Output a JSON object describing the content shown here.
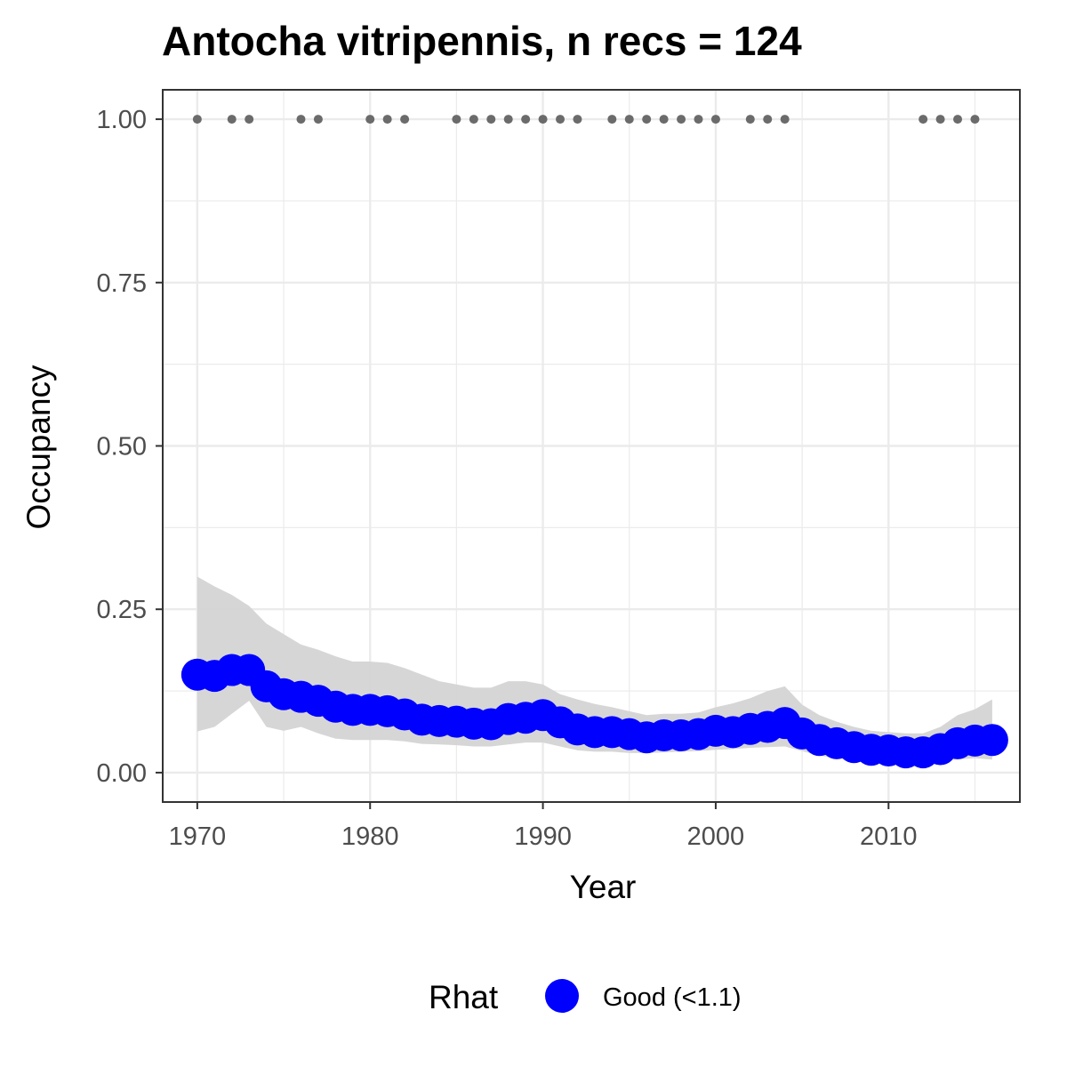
{
  "chart_data": {
    "type": "line",
    "title": "Antocha vitripennis, n recs = 124",
    "xlabel": "Year",
    "ylabel": "Occupancy",
    "xlim": [
      1968,
      2017.6
    ],
    "ylim": [
      -0.045,
      1.045
    ],
    "x_ticks": [
      1970,
      1980,
      1990,
      2000,
      2010
    ],
    "x_tick_labels": [
      "1970",
      "1980",
      "1990",
      "2000",
      "2010"
    ],
    "y_ticks": [
      0,
      0.25,
      0.5,
      0.75,
      1
    ],
    "y_tick_labels": [
      "0.00",
      "0.25",
      "0.50",
      "0.75",
      "1.00"
    ],
    "grid": true,
    "legend": {
      "title": "Rhat",
      "position": "bottom",
      "entries": [
        {
          "label": "Good (<1.1)",
          "color": "#0000ff"
        }
      ]
    },
    "colors": {
      "line": "#0000ff",
      "ribbon": "#d4d4d4",
      "record_points": "#6b6b6b",
      "grid": "#ebebeb",
      "panel_border": "#333333"
    },
    "series": [
      {
        "name": "Good (<1.1)",
        "x": [
          1970,
          1971,
          1972,
          1973,
          1974,
          1975,
          1976,
          1977,
          1978,
          1979,
          1980,
          1981,
          1982,
          1983,
          1984,
          1985,
          1986,
          1987,
          1988,
          1989,
          1990,
          1991,
          1992,
          1993,
          1994,
          1995,
          1996,
          1997,
          1998,
          1999,
          2000,
          2001,
          2002,
          2003,
          2004,
          2005,
          2006,
          2007,
          2008,
          2009,
          2010,
          2011,
          2012,
          2013,
          2014,
          2015,
          2016
        ],
        "y": [
          0.15,
          0.148,
          0.157,
          0.157,
          0.132,
          0.12,
          0.116,
          0.11,
          0.101,
          0.096,
          0.096,
          0.094,
          0.089,
          0.081,
          0.079,
          0.078,
          0.075,
          0.074,
          0.082,
          0.084,
          0.088,
          0.077,
          0.066,
          0.062,
          0.062,
          0.059,
          0.054,
          0.057,
          0.057,
          0.059,
          0.064,
          0.062,
          0.067,
          0.07,
          0.076,
          0.06,
          0.05,
          0.045,
          0.039,
          0.035,
          0.034,
          0.031,
          0.031,
          0.036,
          0.045,
          0.049,
          0.05
        ],
        "lower": [
          0.063,
          0.07,
          0.09,
          0.11,
          0.07,
          0.064,
          0.07,
          0.06,
          0.052,
          0.05,
          0.05,
          0.05,
          0.048,
          0.044,
          0.043,
          0.042,
          0.04,
          0.04,
          0.043,
          0.046,
          0.046,
          0.04,
          0.034,
          0.032,
          0.032,
          0.03,
          0.03,
          0.031,
          0.032,
          0.033,
          0.035,
          0.036,
          0.038,
          0.039,
          0.04,
          0.033,
          0.026,
          0.022,
          0.019,
          0.017,
          0.016,
          0.016,
          0.016,
          0.019,
          0.02,
          0.022,
          0.02
        ],
        "upper": [
          0.3,
          0.285,
          0.272,
          0.255,
          0.228,
          0.212,
          0.196,
          0.188,
          0.178,
          0.17,
          0.17,
          0.168,
          0.16,
          0.15,
          0.14,
          0.135,
          0.13,
          0.13,
          0.14,
          0.14,
          0.135,
          0.12,
          0.112,
          0.105,
          0.1,
          0.094,
          0.088,
          0.09,
          0.09,
          0.092,
          0.1,
          0.106,
          0.114,
          0.125,
          0.132,
          0.104,
          0.088,
          0.078,
          0.07,
          0.064,
          0.062,
          0.06,
          0.06,
          0.07,
          0.088,
          0.097,
          0.112
        ]
      }
    ],
    "record_years": [
      1970,
      1972,
      1973,
      1976,
      1977,
      1980,
      1981,
      1982,
      1985,
      1986,
      1987,
      1988,
      1989,
      1990,
      1991,
      1992,
      1994,
      1995,
      1996,
      1997,
      1998,
      1999,
      2000,
      2002,
      2003,
      2004,
      2012,
      2013,
      2014,
      2015
    ],
    "record_value": 1
  }
}
